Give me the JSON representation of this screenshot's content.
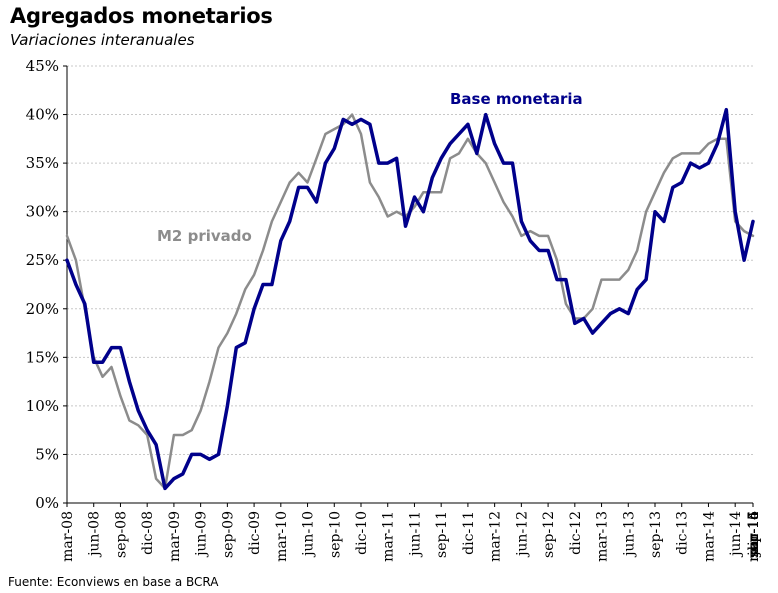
{
  "header": {
    "title": "Agregados monetarios",
    "subtitle": "Variaciones interanuales"
  },
  "footer": {
    "source": "Fuente: Econviews en base a BCRA"
  },
  "colors": {
    "base_monetaria": "#00008B",
    "m2_privado": "#8C8C8C",
    "grid": "#C8C8C8"
  },
  "chart_data": {
    "type": "line",
    "title": "Agregados monetarios",
    "subtitle": "Variaciones interanuales",
    "ylim": [
      0,
      45
    ],
    "y_ticks": [
      "0%",
      "5%",
      "10%",
      "15%",
      "20%",
      "25%",
      "30%",
      "35%",
      "40%",
      "45%"
    ],
    "y_tick_values": [
      0,
      5,
      10,
      15,
      20,
      25,
      30,
      35,
      40,
      45
    ],
    "x_tick_labels": [
      "mar-08",
      "jun-08",
      "sep-08",
      "dic-08",
      "mar-09",
      "jun-09",
      "sep-09",
      "dic-09",
      "mar-10",
      "jun-10",
      "sep-10",
      "dic-10",
      "mar-11",
      "jun-11",
      "sep-11",
      "dic-11",
      "mar-12",
      "jun-12",
      "sep-12",
      "dic-12",
      "mar-13",
      "jun-13",
      "sep-13",
      "dic-13",
      "mar-14",
      "jun-14",
      "sep-14",
      "dic-14",
      "mar-15",
      "jun-15",
      "sep-15",
      "dic-15",
      "mar-16"
    ],
    "grid": true,
    "legend": "inline labels",
    "series": [
      {
        "name": "Base monetaria",
        "color": "#00008B",
        "values": [
          25,
          22.5,
          20.5,
          14.5,
          14.5,
          16,
          16,
          12.5,
          9.5,
          7.5,
          6,
          1.5,
          2.5,
          3,
          5,
          5,
          4.5,
          5,
          10,
          16,
          16.5,
          20,
          22.5,
          22.5,
          27,
          29,
          32.5,
          32.5,
          31,
          35,
          36.5,
          39.5,
          39,
          39.5,
          39,
          35,
          35,
          35.5,
          28.5,
          31.5,
          30,
          33.5,
          35.5,
          37,
          38,
          39,
          36,
          40,
          37,
          35,
          35,
          29,
          27,
          26,
          26,
          23,
          23,
          18.5,
          19,
          17.5,
          18.5,
          19.5,
          20,
          19.5,
          22,
          23,
          30,
          29,
          32.5,
          33,
          35,
          34.5,
          35,
          37,
          40.5,
          30,
          25,
          29
        ]
      },
      {
        "name": "M2 privado",
        "color": "#8C8C8C",
        "values": [
          27.5,
          25,
          20,
          15,
          13,
          14,
          11,
          8.5,
          8,
          7,
          2.5,
          1.5,
          7,
          7,
          7.5,
          9.5,
          12.5,
          16,
          17.5,
          19.5,
          22,
          23.5,
          26,
          29,
          31,
          33,
          34,
          33,
          35.5,
          38,
          38.5,
          39,
          40,
          38,
          33,
          31.5,
          29.5,
          30,
          29.5,
          30.5,
          32,
          32,
          32,
          35.5,
          36,
          37.5,
          36,
          35,
          33,
          31,
          29.5,
          27.5,
          28,
          27.5,
          27.5,
          25,
          20.5,
          19,
          19,
          20,
          23,
          23,
          23,
          24,
          26,
          30,
          32,
          34,
          35.5,
          36,
          36,
          36,
          37,
          37.5,
          37.5,
          29,
          28,
          27.5
        ]
      }
    ]
  }
}
